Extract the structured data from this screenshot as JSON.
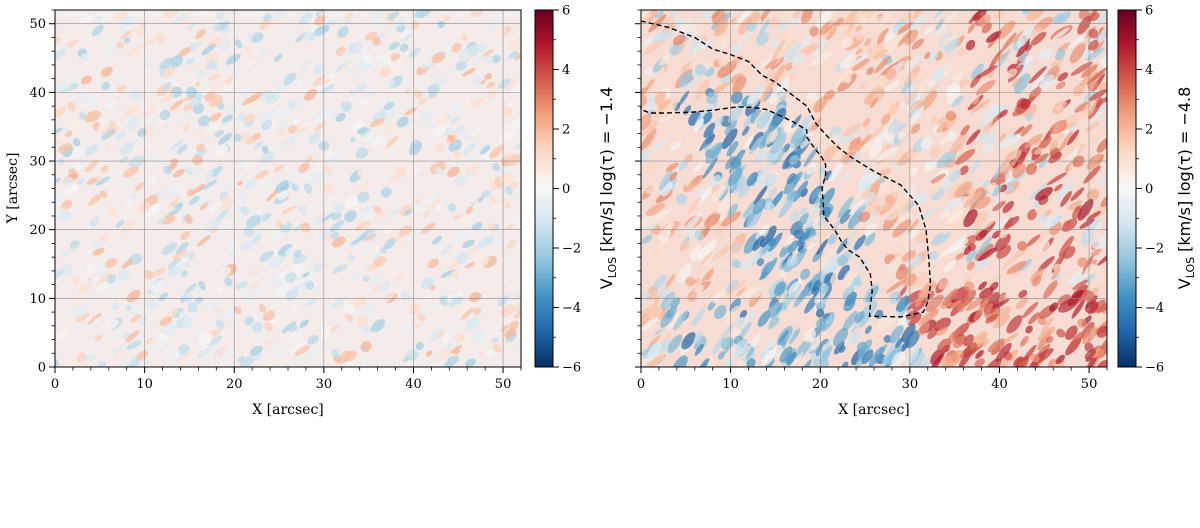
{
  "chart_data": [
    {
      "type": "heatmap",
      "title": "",
      "xlabel": "X [arcsec]",
      "ylabel": "Y [arcsec]",
      "xlim": [
        0,
        52
      ],
      "ylim": [
        0,
        52
      ],
      "xticks": [
        0,
        10,
        20,
        30,
        40,
        50
      ],
      "yticks": [
        0,
        10,
        20,
        30,
        40,
        50
      ],
      "grid": true,
      "colormap": "RdBu_r",
      "colorbar": {
        "label_prefix": "V",
        "label_sub": "LOS",
        "label_suffix": " [km/s] log(τ) = −1.4",
        "range": [
          -6,
          6
        ],
        "ticks": [
          6,
          4,
          2,
          0,
          -2,
          -4,
          -6
        ],
        "tick_labels": [
          "6",
          "4",
          "2",
          "0",
          "−2",
          "−4",
          "−6"
        ]
      },
      "description_values": {
        "typical_amplitude_kms": 1.5
      }
    },
    {
      "type": "heatmap",
      "title": "",
      "xlabel": "X [arcsec]",
      "ylabel": "",
      "xlim": [
        0,
        52
      ],
      "ylim": [
        0,
        52
      ],
      "xticks": [
        0,
        10,
        20,
        30,
        40,
        50
      ],
      "yticks": [
        0,
        10,
        20,
        30,
        40,
        50
      ],
      "grid": true,
      "colormap": "RdBu_r",
      "colorbar": {
        "label_prefix": "V",
        "label_sub": "LOS",
        "label_suffix": " [km/s] log(τ) = −4.8",
        "range": [
          -6,
          6
        ],
        "ticks": [
          6,
          4,
          2,
          0,
          -2,
          -4,
          -6
        ],
        "tick_labels": [
          "6",
          "4",
          "2",
          "0",
          "−2",
          "−4",
          "−6"
        ]
      },
      "contour": {
        "style": "dashed",
        "points": [
          [
            0,
            50.4
          ],
          [
            3,
            49.5
          ],
          [
            6,
            48
          ],
          [
            8,
            46.3
          ],
          [
            10,
            45.5
          ],
          [
            12,
            44.5
          ],
          [
            13.5,
            42.5
          ],
          [
            15,
            41.5
          ],
          [
            17,
            39.5
          ],
          [
            18.5,
            38
          ],
          [
            19.5,
            35.5
          ],
          [
            20.5,
            34
          ],
          [
            22,
            32
          ],
          [
            23.5,
            30.5
          ],
          [
            26,
            28.5
          ],
          [
            29,
            26.5
          ],
          [
            31,
            23.5
          ],
          [
            31.8,
            20
          ],
          [
            32.1,
            16
          ],
          [
            32.3,
            12
          ],
          [
            32,
            9.5
          ],
          [
            31.5,
            8
          ],
          [
            29,
            7.3
          ],
          [
            25.5,
            7.4
          ],
          [
            25.6,
            9
          ],
          [
            25.8,
            11
          ],
          [
            25.6,
            13.5
          ],
          [
            24.4,
            16
          ],
          [
            23.2,
            17
          ],
          [
            22.5,
            18
          ],
          [
            21.6,
            20
          ],
          [
            20.4,
            22
          ],
          [
            20.3,
            24.5
          ],
          [
            20.2,
            26
          ],
          [
            20.6,
            28
          ],
          [
            20.6,
            29.5
          ],
          [
            20.2,
            30.5
          ],
          [
            19.6,
            31.5
          ],
          [
            19,
            32.5
          ],
          [
            18.5,
            33.5
          ],
          [
            18.5,
            34.5
          ],
          [
            17,
            35.7
          ],
          [
            15.7,
            36.5
          ],
          [
            14,
            37.5
          ],
          [
            12.5,
            37.8
          ],
          [
            10.8,
            37.9
          ],
          [
            8,
            37.4
          ],
          [
            5.5,
            37.1
          ],
          [
            2.5,
            37
          ],
          [
            1,
            37
          ],
          [
            0,
            37.5
          ],
          [
            0,
            38
          ]
        ]
      },
      "description_values": {
        "negative_lane_min_kms": -5,
        "positive_patch_max_kms": 5
      }
    }
  ]
}
